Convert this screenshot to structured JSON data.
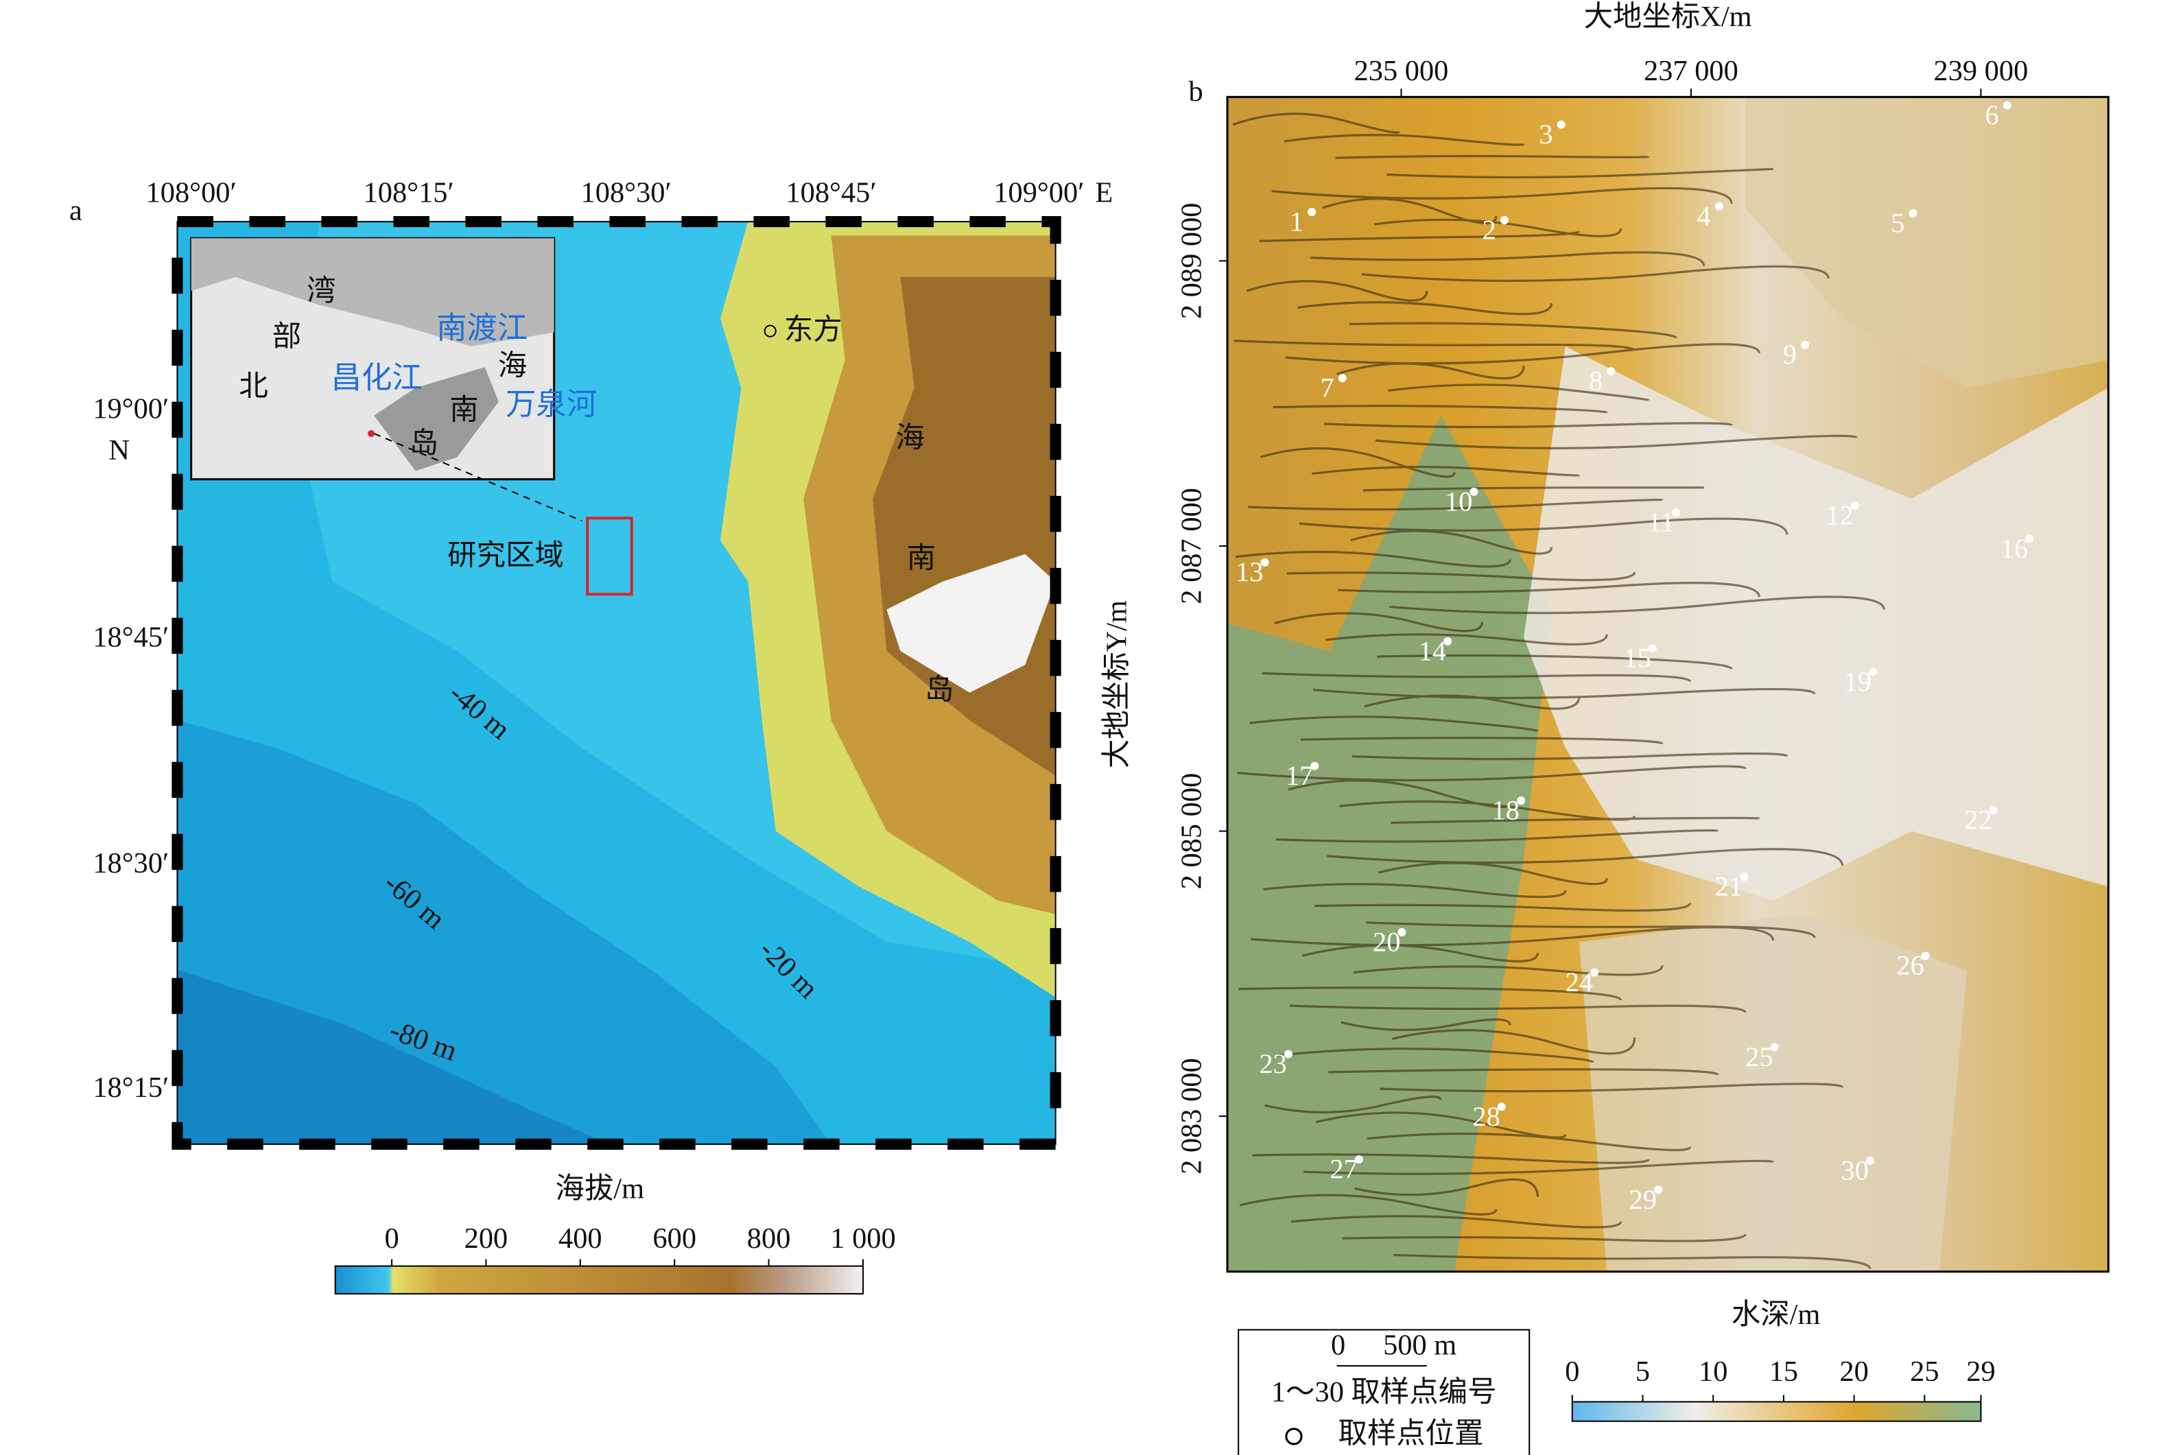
{
  "panel_a": {
    "label": "a",
    "x_ticks": [
      "108°00′",
      "108°15′",
      "108°30′",
      "108°45′",
      "109°00′"
    ],
    "x_unit": "E",
    "y_ticks": [
      "19°00′",
      "18°45′",
      "18°30′",
      "18°15′"
    ],
    "y_unit": "N",
    "places": [
      "东方",
      "海",
      "南",
      "岛",
      "研究区域"
    ],
    "contours": [
      "-40 m",
      "-60 m",
      "-20 m",
      "-80 m"
    ],
    "inset": {
      "labels": [
        "湾",
        "部",
        "北",
        "海",
        "南",
        "岛"
      ],
      "rivers": [
        "南渡江",
        "昌化江",
        "万泉河"
      ]
    },
    "colorbar": {
      "title": "海拔/m",
      "range": [
        -120,
        1000
      ],
      "ticks": [
        0,
        200,
        400,
        600,
        800,
        {
          "value": 1000,
          "label": "1 000"
        }
      ]
    }
  },
  "panel_b": {
    "label": "b",
    "x_title": "大地坐标X/m",
    "xlim": [
      233800,
      239880
    ],
    "xticks": [
      {
        "value": 235000,
        "label": "235 000"
      },
      {
        "value": 237000,
        "label": "237 000"
      },
      {
        "value": 239000,
        "label": "239 000"
      }
    ],
    "y_title": "大地坐标Y/m",
    "ylim": [
      2081910,
      2090150
    ],
    "yticks": [
      {
        "value": 2083000,
        "label": "2 083 000"
      },
      {
        "value": 2085000,
        "label": "2 085 000"
      },
      {
        "value": 2087000,
        "label": "2 087 000"
      },
      {
        "value": 2089000,
        "label": "2 089 000"
      }
    ],
    "samples": [
      "1",
      "2",
      "3",
      "4",
      "5",
      "6",
      "7",
      "8",
      "9",
      "10",
      "11",
      "12",
      "13",
      "14",
      "15",
      "16",
      "17",
      "18",
      "19",
      "20",
      "21",
      "22",
      "23",
      "24",
      "25",
      "26",
      "27",
      "28",
      "29",
      "30"
    ],
    "legend": {
      "scale": [
        "0",
        "500 m"
      ],
      "numbers": "1～30 取样点编号",
      "points": "取样点位置"
    },
    "colorbar": {
      "title": "水深/m",
      "range": [
        0,
        29
      ],
      "ticks": [
        0,
        5,
        10,
        15,
        20,
        25,
        29
      ]
    }
  }
}
